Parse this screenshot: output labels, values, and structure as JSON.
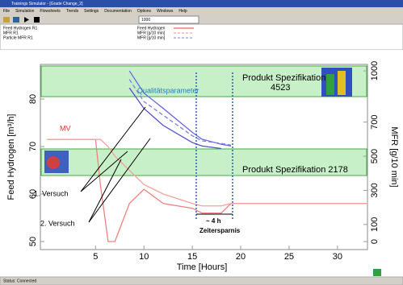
{
  "window": {
    "title": "Trainings Simulator - [Grade Change_2]",
    "menu": [
      "File",
      "Simulation",
      "Flowsheets",
      "Trends",
      "Settings",
      "Documentation",
      "Options",
      "Windows",
      "Help"
    ],
    "toolbar_value": "1000",
    "legend_rows": [
      {
        "name": "Feed Hydrogen R1",
        "unit": "Feed Hydrogen"
      },
      {
        "name": "MFR R1",
        "unit": "MFR [g/10 min]"
      },
      {
        "name": "Particle MFR R1",
        "unit": "MFR [g/10 min]"
      }
    ],
    "status": "Status: Connected"
  },
  "chart_data": {
    "type": "line",
    "xlabel": "Time [Hours]",
    "ylabel": "Feed Hydrogen [m³/h]",
    "y2label": "MFR [g/10 min]",
    "xlim": [
      -0.7,
      33.1
    ],
    "xticks": [
      5,
      10,
      15,
      20,
      25,
      30
    ],
    "ylim": [
      48.3,
      87.3
    ],
    "yticks": [
      50,
      60,
      70,
      80
    ],
    "y2lim": [
      -47,
      1038
    ],
    "y2ticks": [
      0,
      100,
      300,
      500,
      700,
      1000
    ],
    "x": [
      0,
      5,
      5.5,
      6.3,
      7,
      8.5,
      10,
      12,
      15,
      16,
      18,
      19,
      20,
      25,
      33
    ],
    "series": [
      {
        "color": "#f08080",
        "values": [
          71.5,
          71.5,
          62,
          50,
          50,
          58,
          61,
          58,
          57,
          56,
          56,
          58,
          58,
          58,
          58
        ]
      },
      {
        "color": "#f4a0a0",
        "values": [
          71.5,
          71.5,
          71.5,
          70,
          68,
          65,
          62,
          60,
          58,
          57.5,
          57.5,
          58,
          58,
          58,
          58
        ]
      },
      {
        "color": "#6868d8",
        "axis": "y2",
        "values": [
          null,
          null,
          null,
          null,
          null,
          1000,
          870,
          780,
          640,
          600,
          570,
          560,
          null,
          null,
          null
        ]
      },
      {
        "color": "#8080e0",
        "axis": "y2",
        "dashed": true,
        "values": [
          null,
          null,
          null,
          null,
          null,
          950,
          820,
          740,
          620,
          590,
          575,
          565,
          null,
          null,
          null
        ]
      },
      {
        "color": "#5050c8",
        "axis": "y2",
        "values": [
          null,
          null,
          null,
          null,
          null,
          900,
          780,
          680,
          580,
          560,
          545,
          null,
          null,
          null,
          null
        ]
      }
    ],
    "annotations": {
      "spec_high": "Produkt Spezifikation\n4523",
      "spec_low": "Produkt Spezifikation 2178",
      "quality": "Qualitätsparameter",
      "mv": "MV",
      "trial1": "1. Versuch",
      "trial2": "2. Versuch",
      "duration": "~ 4 h",
      "saving": "Zeitersparnis"
    }
  }
}
